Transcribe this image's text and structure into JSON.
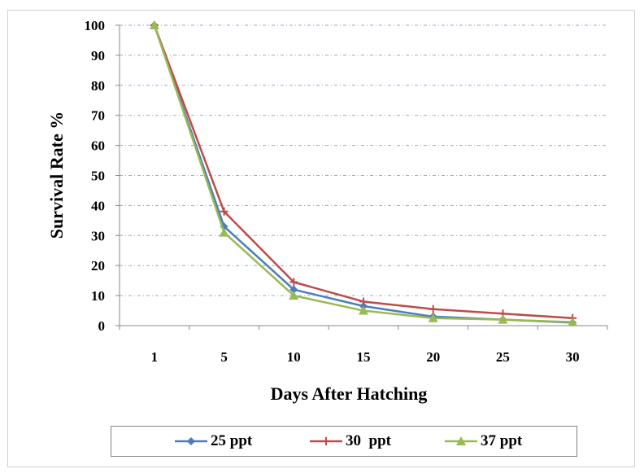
{
  "chart_data": {
    "type": "line",
    "xlabel": "Days After Hatching",
    "ylabel": "Survival Rate  %",
    "categories": [
      "1",
      "5",
      "10",
      "15",
      "20",
      "25",
      "30"
    ],
    "yticks": [
      "0",
      "10",
      "20",
      "30",
      "40",
      "50",
      "60",
      "70",
      "80",
      "90",
      "100"
    ],
    "ylim": [
      0,
      100
    ],
    "grid": true,
    "legend_position": "bottom",
    "series": [
      {
        "name": "25 ppt",
        "color": "#4a7ebb",
        "marker": "diamond",
        "values": [
          100,
          33,
          12,
          6.5,
          3,
          2,
          1
        ]
      },
      {
        "name": "30  ppt",
        "color": "#be4b48",
        "marker": "plus",
        "values": [
          100,
          38,
          14.5,
          8,
          5.5,
          4,
          2.5
        ]
      },
      {
        "name": "37 ppt",
        "color": "#98b954",
        "marker": "triangle",
        "values": [
          100,
          31,
          10,
          5,
          2.5,
          2,
          1.2
        ]
      }
    ]
  }
}
